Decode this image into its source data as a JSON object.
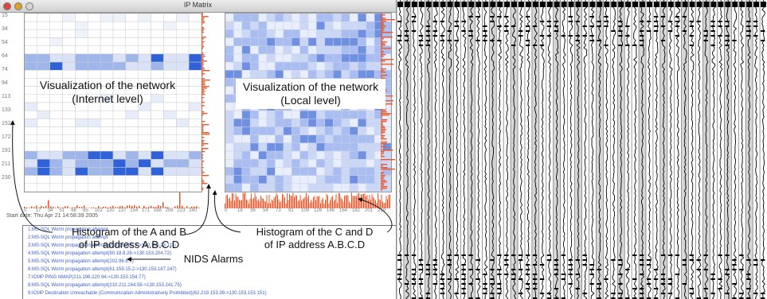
{
  "window": {
    "title": "IP Matrix",
    "y_ticks": [
      "15",
      "34",
      "54",
      "64",
      "74",
      "94",
      "113",
      "133",
      "152",
      "172",
      "191",
      "211",
      "230"
    ],
    "x_ticks_left": [
      "0",
      "17",
      "34",
      "51",
      "68",
      "85",
      "102",
      "120",
      "137",
      "154",
      "171",
      "188",
      "206",
      "223",
      "240"
    ],
    "x_ticks_right": [
      "0",
      "18",
      "36",
      "54",
      "73",
      "91",
      "109",
      "128",
      "146",
      "164",
      "182",
      "201",
      "219"
    ],
    "start_date": "Start date: Thu Apr 21 14:58:39 2005",
    "alarms": [
      "1:MS-SQL Worm propagation attempt",
      "2:MS-SQL Worm propagation attempt",
      "3:MS-SQL Worm propagation attempt(219.15.231.9->130.153.23.111)",
      "4:MS-SQL Worm propagation attempt(90.18.8.28->130.153.204.72)",
      "5:MS-SQL Worm propagation attempt(202.96.8...)",
      "6:MS-SQL Worm propagation attempt(61.159.15.2->130.153.187.247)",
      "7:ICMP PING NMAP(211.196.220.94->130.153.154.77)",
      "8:MS-SQL Worm propagation attempt(210.211.164.59->130.153.241.75)",
      "9:ICMP Destination Unreachable (Communication Administratively Prohibited)(62.219.153.39->130.153.153.151)"
    ],
    "colors": {
      "cell_blue": "#2f62d8",
      "hist_orange": "#e8572a",
      "alarm_text": "#3a5fc8"
    }
  },
  "annotations": {
    "internet_label_1": "Visualization of the network",
    "internet_label_2": "(Internet level)",
    "local_label_1": "Visualization of the network",
    "local_label_2": "(Local level)",
    "hist_ab_1": "Histogram of the A and B",
    "hist_ab_2": "of IP address A.B.C.D",
    "hist_cd_1": "Histogram of the C and D",
    "hist_cd_2": "of IP address A.B.C.D",
    "nids": "NIDS Alarms"
  },
  "right_panel": {
    "icon": "waveform-grid-icon"
  }
}
